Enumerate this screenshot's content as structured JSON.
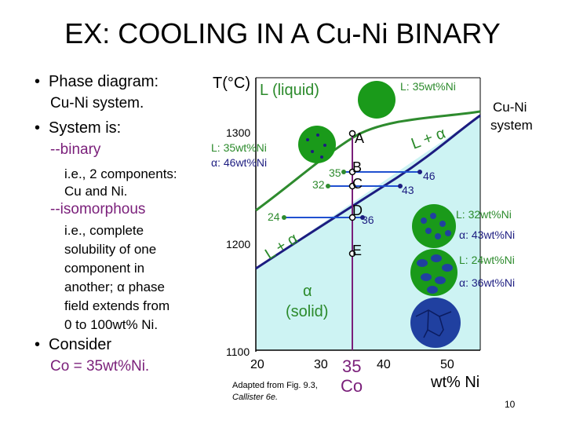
{
  "title": "EX:  COOLING IN A Cu-Ni BINARY",
  "left_text": {
    "bullet1": "Phase diagram:",
    "bullet1_sub": "Cu-Ni system.",
    "bullet2": "System is:",
    "binary": "--binary",
    "binary_note_1": "i.e., 2 components:",
    "binary_note_2": "Cu and Ni.",
    "isomorphous": "--isomorphous",
    "iso_note_lines": [
      "i.e., complete",
      "solubility of one",
      "component in",
      "another; α phase",
      "field extends from",
      "0 to 100wt% Ni."
    ],
    "bullet3": "Consider",
    "co_label": "Co = 35wt%Ni."
  },
  "diagram": {
    "y_axis_label": "T(°C)",
    "y_ticks": [
      "1300",
      "1200",
      "1100"
    ],
    "x_ticks": [
      "20",
      "30",
      "40",
      "50"
    ],
    "x_axis_label": "wt% Ni",
    "co_value": "35",
    "co_text": "Co",
    "liquid_region": "L (liquid)",
    "two_phase_upper": "L + α",
    "two_phase_lower": "L + α",
    "solid_alpha": "α",
    "solid_text": "(solid)",
    "system_label_1": "Cu-Ni",
    "system_label_2": "system",
    "liquid_comp": "L: 35wt%Ni",
    "pointA_comp_1": "L: 35wt%Ni",
    "pointA_comp_2": "α: 46wt%Ni",
    "pointD_comp_1": "L:  32wt%Ni",
    "pointD_comp_2": "α: 43wt%Ni",
    "pointE_comp_1": "L: 24wt%Ni",
    "pointE_comp_2": "α: 36wt%Ni",
    "points": [
      "A",
      "B",
      "C",
      "D",
      "E"
    ],
    "tie_values": {
      "b_left": "35",
      "b_right": "46",
      "c_left": "32",
      "c_right": "43",
      "d_left": "24",
      "d_right": "36"
    },
    "caption_1": "Adapted from Fig. 9.3,",
    "caption_2": "Callister 6e."
  },
  "page_number": "10",
  "colors": {
    "liquid_fill": "#ffffff",
    "two_phase_fill": "#ffffff",
    "alpha_fill": "#cdf3f3",
    "liquidus": "#2e8b2e",
    "solidus": "#1c1c80",
    "tie_line": "#2050d0",
    "text_accent": "#7a1f7a",
    "phase_text": "#2b8a2b",
    "grain_green": "#1a9a1a",
    "grain_blue": "#2040a0"
  }
}
